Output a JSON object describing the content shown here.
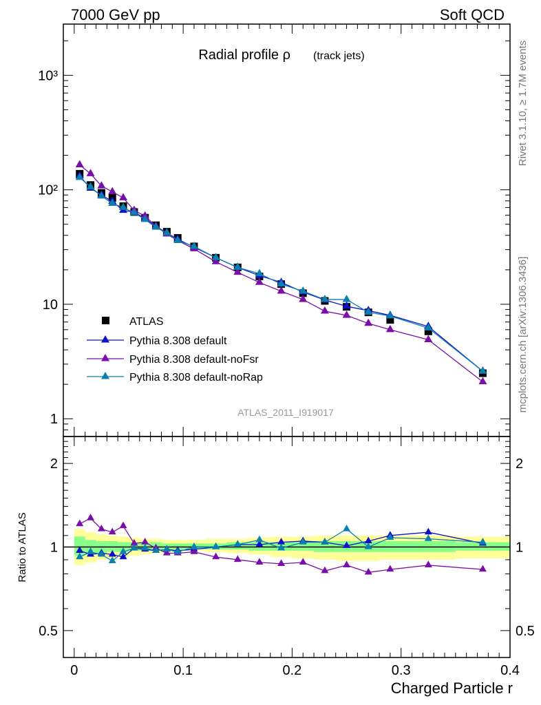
{
  "header": {
    "left": "7000 GeV pp",
    "right": "Soft QCD"
  },
  "side": {
    "top": "Rivet 3.1.10, ≥ 1.7M events",
    "bottom": "mcplots.cern.ch [arXiv:1306.3436]"
  },
  "colors": {
    "data": "#000000",
    "default": "#1010c8",
    "noFsr": "#7a0ea8",
    "noRap": "#0a7fb0",
    "band_yellow": "#ffff99",
    "band_green": "#88ff88"
  },
  "chart_data": [
    {
      "type": "line",
      "title": "Radial profile ρ",
      "title_suffix": "(track jets)",
      "watermark": "ATLAS_2011_I919017",
      "yscale": "log",
      "ylim": [
        0.7,
        2800
      ],
      "y_tick_labels": [
        "1",
        "10",
        "10²",
        "10³"
      ],
      "xlim": [
        -0.01,
        0.4
      ],
      "legend_position": "center-left",
      "x": [
        0.005,
        0.015,
        0.025,
        0.035,
        0.045,
        0.055,
        0.065,
        0.075,
        0.085,
        0.095,
        0.11,
        0.13,
        0.15,
        0.17,
        0.19,
        0.21,
        0.23,
        0.25,
        0.27,
        0.29,
        0.325,
        0.375
      ],
      "series": [
        {
          "name": "ATLAS",
          "marker": "square",
          "values": [
            138,
            110,
            94,
            85,
            72,
            64,
            57,
            49,
            43,
            38,
            32,
            25.5,
            21,
            17.5,
            15,
            12.5,
            10.7,
            9.5,
            8.5,
            7.3,
            5.8,
            2.5
          ]
        },
        {
          "name": "Pythia 8.308 default",
          "marker": "triangle",
          "values": [
            132,
            103,
            90,
            79,
            66,
            64,
            56,
            48,
            42,
            37,
            31.5,
            25.5,
            21,
            17.8,
            15.5,
            12.8,
            10.9,
            9.6,
            8.8,
            8,
            6.4,
            2.6
          ]
        },
        {
          "name": "Pythia 8.308 default-noFsr",
          "marker": "triangle",
          "values": [
            165,
            138,
            108,
            96,
            85,
            66,
            59,
            48,
            41,
            36,
            30.5,
            23.5,
            19,
            15.5,
            13,
            11,
            8.7,
            8,
            6.8,
            6,
            4.9,
            2.1
          ]
        },
        {
          "name": "Pythia 8.308 default-noRap",
          "marker": "triangle",
          "values": [
            128,
            106,
            88,
            76,
            70,
            63,
            55,
            47,
            42,
            36,
            32,
            25.5,
            21,
            18.5,
            15,
            13,
            11,
            11,
            8.5,
            7.9,
            6.2,
            2.6
          ]
        }
      ]
    },
    {
      "type": "line",
      "ylabel": "Ratio to ATLAS",
      "xlabel": "Charged Particle r",
      "yscale": "log",
      "ylim": [
        0.4,
        2.5
      ],
      "y_ticks": [
        0.5,
        1,
        2
      ],
      "xlim": [
        -0.01,
        0.4
      ],
      "x_ticks": [
        0,
        0.1,
        0.2,
        0.3,
        0.4
      ],
      "x": [
        0.005,
        0.015,
        0.025,
        0.035,
        0.045,
        0.055,
        0.065,
        0.075,
        0.085,
        0.095,
        0.11,
        0.13,
        0.15,
        0.17,
        0.19,
        0.21,
        0.23,
        0.25,
        0.27,
        0.29,
        0.325,
        0.375
      ],
      "band_edges": [
        0,
        0.01,
        0.02,
        0.03,
        0.04,
        0.05,
        0.06,
        0.07,
        0.08,
        0.09,
        0.1,
        0.12,
        0.14,
        0.16,
        0.18,
        0.2,
        0.22,
        0.24,
        0.26,
        0.28,
        0.3,
        0.35,
        0.4
      ],
      "band_yellow": [
        [
          0.86,
          1.16
        ],
        [
          0.88,
          1.13
        ],
        [
          0.9,
          1.11
        ],
        [
          0.91,
          1.1
        ],
        [
          0.92,
          1.09
        ],
        [
          0.93,
          1.08
        ],
        [
          0.94,
          1.07
        ],
        [
          0.95,
          1.07
        ],
        [
          0.95,
          1.06
        ],
        [
          0.96,
          1.06
        ],
        [
          0.97,
          1.06
        ],
        [
          0.96,
          1.07
        ],
        [
          0.95,
          1.07
        ],
        [
          0.94,
          1.08
        ],
        [
          0.92,
          1.09
        ],
        [
          0.91,
          1.09
        ],
        [
          0.9,
          1.1
        ],
        [
          0.89,
          1.1
        ],
        [
          0.89,
          1.1
        ],
        [
          0.9,
          1.1
        ],
        [
          0.9,
          1.1
        ],
        [
          0.91,
          1.09
        ]
      ],
      "band_green": [
        [
          0.93,
          1.09
        ],
        [
          0.94,
          1.06
        ],
        [
          0.95,
          1.05
        ],
        [
          0.96,
          1.05
        ],
        [
          0.96,
          1.04
        ],
        [
          0.97,
          1.04
        ],
        [
          0.97,
          1.04
        ],
        [
          0.97,
          1.04
        ],
        [
          0.97,
          1.03
        ],
        [
          0.98,
          1.03
        ],
        [
          0.98,
          1.03
        ],
        [
          0.98,
          1.03
        ],
        [
          0.98,
          1.04
        ],
        [
          0.97,
          1.04
        ],
        [
          0.97,
          1.04
        ],
        [
          0.97,
          1.04
        ],
        [
          0.96,
          1.05
        ],
        [
          0.96,
          1.05
        ],
        [
          0.96,
          1.05
        ],
        [
          0.96,
          1.05
        ],
        [
          0.96,
          1.05
        ],
        [
          0.97,
          1.04
        ]
      ],
      "series": [
        {
          "name": "Pythia 8.308 default",
          "values": [
            0.97,
            0.94,
            0.95,
            0.94,
            0.92,
            0.99,
            0.98,
            0.97,
            0.98,
            0.97,
            0.98,
            1.0,
            1.02,
            1.02,
            1.04,
            1.05,
            1.04,
            1.01,
            1.05,
            1.1,
            1.13,
            1.03
          ]
        },
        {
          "name": "Pythia 8.308 default-noFsr",
          "values": [
            1.21,
            1.27,
            1.16,
            1.13,
            1.19,
            1.03,
            1.04,
            0.99,
            0.95,
            0.95,
            0.96,
            0.92,
            0.9,
            0.88,
            0.87,
            0.88,
            0.82,
            0.86,
            0.81,
            0.83,
            0.86,
            0.83
          ]
        },
        {
          "name": "Pythia 8.308 default-noRap",
          "values": [
            0.92,
            0.96,
            0.94,
            0.89,
            0.96,
            0.99,
            0.99,
            0.97,
            0.98,
            0.96,
            1.0,
            1.0,
            1.02,
            1.06,
            0.99,
            1.04,
            1.04,
            1.16,
            1.0,
            1.08,
            1.07,
            1.04
          ]
        }
      ]
    }
  ]
}
